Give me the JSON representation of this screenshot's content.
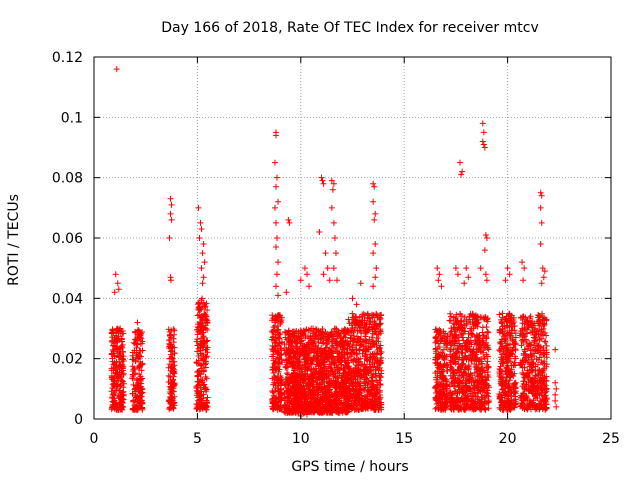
{
  "chart_data": {
    "type": "scatter",
    "title": "Day 166 of 2018, Rate Of TEC Index for receiver mtcv",
    "xlabel": "GPS time / hours",
    "ylabel": "ROTI / TECUs",
    "xlim": [
      0,
      25
    ],
    "ylim": [
      0,
      0.12
    ],
    "x_ticks": [
      0,
      5,
      10,
      15,
      20,
      25
    ],
    "x_tick_labels": [
      "0",
      "5",
      "10",
      "15",
      "20",
      "25"
    ],
    "y_ticks": [
      0,
      0.02,
      0.04,
      0.06,
      0.08,
      0.1,
      0.12
    ],
    "y_tick_labels": [
      "0",
      "0.02",
      "0.04",
      "0.06",
      "0.08",
      "0.1",
      "0.12"
    ],
    "grid": true,
    "marker": "+",
    "marker_color": "#ff0000",
    "series": [
      {
        "name": "ROTI",
        "clusters": [
          {
            "x_range": [
              0.85,
              1.45
            ],
            "y_range": [
              0.003,
              0.03
            ],
            "count": 220
          },
          {
            "x_range": [
              1.85,
              2.35
            ],
            "y_range": [
              0.003,
              0.03
            ],
            "count": 160
          },
          {
            "x_range": [
              3.6,
              3.9
            ],
            "y_range": [
              0.003,
              0.03
            ],
            "count": 120
          },
          {
            "x_range": [
              4.95,
              5.5
            ],
            "y_range": [
              0.003,
              0.04
            ],
            "count": 220
          },
          {
            "x_range": [
              8.6,
              9.1
            ],
            "y_range": [
              0.003,
              0.035
            ],
            "count": 200
          },
          {
            "x_range": [
              9.2,
              12.3
            ],
            "y_range": [
              0.002,
              0.03
            ],
            "count": 1400
          },
          {
            "x_range": [
              12.3,
              13.9
            ],
            "y_range": [
              0.003,
              0.035
            ],
            "count": 600
          },
          {
            "x_range": [
              16.5,
              17.1
            ],
            "y_range": [
              0.003,
              0.03
            ],
            "count": 220
          },
          {
            "x_range": [
              17.2,
              19.1
            ],
            "y_range": [
              0.003,
              0.035
            ],
            "count": 650
          },
          {
            "x_range": [
              19.6,
              20.4
            ],
            "y_range": [
              0.003,
              0.035
            ],
            "count": 300
          },
          {
            "x_range": [
              20.6,
              21.9
            ],
            "y_range": [
              0.003,
              0.035
            ],
            "count": 420
          }
        ],
        "points": [
          [
            1.1,
            0.116
          ],
          [
            1.05,
            0.048
          ],
          [
            1.15,
            0.045
          ],
          [
            1.2,
            0.043
          ],
          [
            1.0,
            0.042
          ],
          [
            2.1,
            0.032
          ],
          [
            2.2,
            0.029
          ],
          [
            3.7,
            0.073
          ],
          [
            3.75,
            0.071
          ],
          [
            3.7,
            0.068
          ],
          [
            3.75,
            0.066
          ],
          [
            3.65,
            0.06
          ],
          [
            3.7,
            0.047
          ],
          [
            3.72,
            0.046
          ],
          [
            5.05,
            0.07
          ],
          [
            5.15,
            0.065
          ],
          [
            5.2,
            0.063
          ],
          [
            5.1,
            0.06
          ],
          [
            5.3,
            0.058
          ],
          [
            5.25,
            0.055
          ],
          [
            5.35,
            0.052
          ],
          [
            5.2,
            0.05
          ],
          [
            5.3,
            0.047
          ],
          [
            5.25,
            0.045
          ],
          [
            8.8,
            0.095
          ],
          [
            8.8,
            0.094
          ],
          [
            8.75,
            0.085
          ],
          [
            8.85,
            0.08
          ],
          [
            8.8,
            0.077
          ],
          [
            8.9,
            0.072
          ],
          [
            8.75,
            0.07
          ],
          [
            8.8,
            0.065
          ],
          [
            8.85,
            0.06
          ],
          [
            8.8,
            0.057
          ],
          [
            8.9,
            0.052
          ],
          [
            8.85,
            0.048
          ],
          [
            8.8,
            0.044
          ],
          [
            8.9,
            0.041
          ],
          [
            9.4,
            0.066
          ],
          [
            9.45,
            0.065
          ],
          [
            9.3,
            0.042
          ],
          [
            10.2,
            0.05
          ],
          [
            10.3,
            0.048
          ],
          [
            10.0,
            0.046
          ],
          [
            10.4,
            0.044
          ],
          [
            11.0,
            0.08
          ],
          [
            11.05,
            0.079
          ],
          [
            11.1,
            0.078
          ],
          [
            10.9,
            0.062
          ],
          [
            11.2,
            0.055
          ],
          [
            11.3,
            0.05
          ],
          [
            11.1,
            0.048
          ],
          [
            11.4,
            0.046
          ],
          [
            11.5,
            0.079
          ],
          [
            11.6,
            0.078
          ],
          [
            11.55,
            0.076
          ],
          [
            11.5,
            0.07
          ],
          [
            11.6,
            0.065
          ],
          [
            11.65,
            0.06
          ],
          [
            11.7,
            0.055
          ],
          [
            11.6,
            0.05
          ],
          [
            11.75,
            0.046
          ],
          [
            12.5,
            0.04
          ],
          [
            12.7,
            0.038
          ],
          [
            12.9,
            0.045
          ],
          [
            13.5,
            0.078
          ],
          [
            13.55,
            0.077
          ],
          [
            13.5,
            0.072
          ],
          [
            13.6,
            0.068
          ],
          [
            13.55,
            0.066
          ],
          [
            13.6,
            0.058
          ],
          [
            13.5,
            0.055
          ],
          [
            13.65,
            0.05
          ],
          [
            13.6,
            0.047
          ],
          [
            13.5,
            0.044
          ],
          [
            16.6,
            0.05
          ],
          [
            16.7,
            0.048
          ],
          [
            16.65,
            0.046
          ],
          [
            16.8,
            0.044
          ],
          [
            17.7,
            0.085
          ],
          [
            17.8,
            0.082
          ],
          [
            17.75,
            0.081
          ],
          [
            17.5,
            0.05
          ],
          [
            17.6,
            0.048
          ],
          [
            18.0,
            0.05
          ],
          [
            18.1,
            0.047
          ],
          [
            17.9,
            0.045
          ],
          [
            18.8,
            0.098
          ],
          [
            18.85,
            0.095
          ],
          [
            18.8,
            0.092
          ],
          [
            18.85,
            0.091
          ],
          [
            18.9,
            0.09
          ],
          [
            18.95,
            0.061
          ],
          [
            19.0,
            0.06
          ],
          [
            18.9,
            0.056
          ],
          [
            18.7,
            0.05
          ],
          [
            18.95,
            0.048
          ],
          [
            19.0,
            0.046
          ],
          [
            20.0,
            0.05
          ],
          [
            20.1,
            0.048
          ],
          [
            19.9,
            0.046
          ],
          [
            20.7,
            0.052
          ],
          [
            20.8,
            0.05
          ],
          [
            20.75,
            0.046
          ],
          [
            21.6,
            0.075
          ],
          [
            21.65,
            0.074
          ],
          [
            21.6,
            0.07
          ],
          [
            21.65,
            0.065
          ],
          [
            21.6,
            0.058
          ],
          [
            21.7,
            0.05
          ],
          [
            21.8,
            0.049
          ],
          [
            21.75,
            0.047
          ],
          [
            21.65,
            0.045
          ],
          [
            22.3,
            0.023
          ],
          [
            22.3,
            0.012
          ],
          [
            22.35,
            0.01
          ],
          [
            22.3,
            0.008
          ],
          [
            22.3,
            0.006
          ],
          [
            22.35,
            0.004
          ],
          [
            10.0,
            0.001
          ],
          [
            10.3,
            0.0015
          ]
        ]
      }
    ]
  }
}
